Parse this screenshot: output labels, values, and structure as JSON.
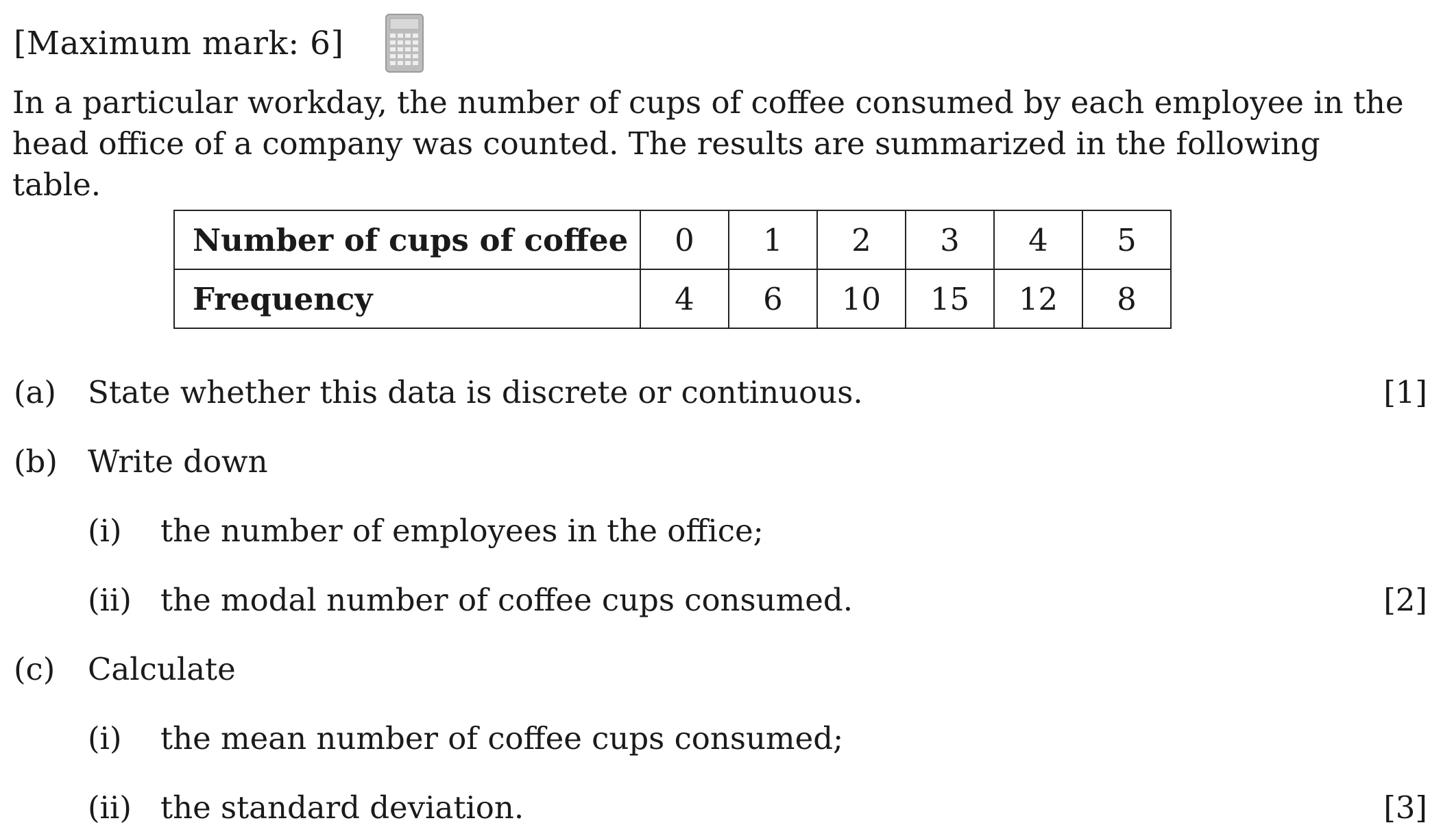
{
  "header": {
    "max_mark": "[Maximum mark: 6]",
    "icon": "calculator-icon"
  },
  "intro": "In a particular workday, the number of cups of coffee consumed by each employee in the head office of a company was counted. The results are summarized in the following table.",
  "table": {
    "row_headers": [
      "Number of cups of coffee",
      "Frequency"
    ],
    "cups": [
      "0",
      "1",
      "2",
      "3",
      "4",
      "5"
    ],
    "frequency": [
      "4",
      "6",
      "10",
      "15",
      "12",
      "8"
    ]
  },
  "questions": {
    "a": {
      "label": "(a)",
      "text": "State whether this data is discrete or continuous.",
      "mark": "[1]"
    },
    "b": {
      "label": "(b)",
      "text": "Write down",
      "i": {
        "label": "(i)",
        "text": "the number of employees in the office;"
      },
      "ii": {
        "label": "(ii)",
        "text": "the modal number of coffee cups consumed."
      },
      "mark": "[2]"
    },
    "c": {
      "label": "(c)",
      "text": "Calculate",
      "i": {
        "label": "(i)",
        "text": "the mean number of coffee cups consumed;"
      },
      "ii": {
        "label": "(ii)",
        "text": "the standard deviation."
      },
      "mark": "[3]"
    }
  }
}
